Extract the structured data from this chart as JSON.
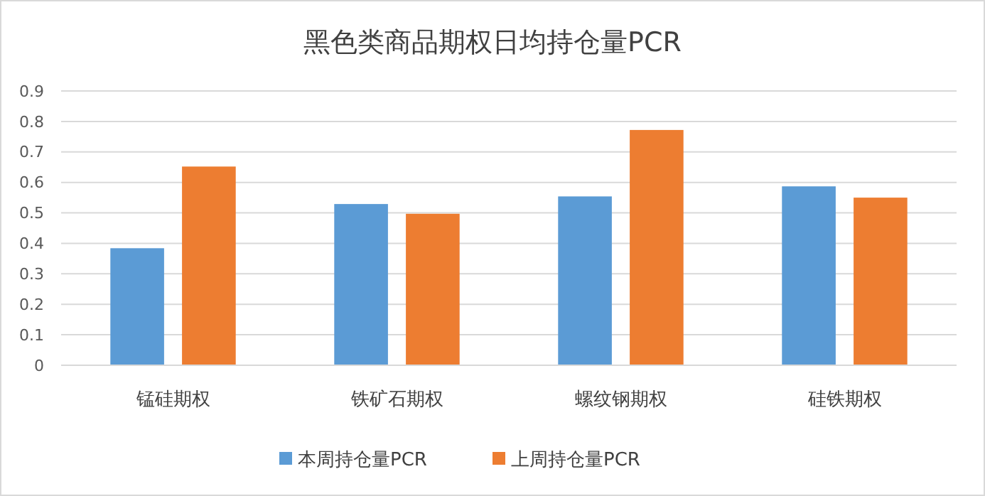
{
  "chart_data": {
    "type": "bar",
    "title": "黑色类商品期权日均持仓量PCR",
    "categories": [
      "锰硅期权",
      "铁矿石期权",
      "螺纹钢期权",
      "硅铁期权"
    ],
    "series": [
      {
        "name": "本周持仓量PCR",
        "color": "#5b9bd5",
        "values": [
          0.384,
          0.529,
          0.554,
          0.587
        ]
      },
      {
        "name": "上周持仓量PCR",
        "color": "#ed7d31",
        "values": [
          0.652,
          0.497,
          0.772,
          0.55
        ]
      }
    ],
    "ylim": [
      0,
      0.9
    ],
    "yticks": [
      0,
      0.1,
      0.2,
      0.3,
      0.4,
      0.5,
      0.6,
      0.7,
      0.8,
      0.9
    ],
    "grid": "y",
    "legend": "bottom"
  }
}
